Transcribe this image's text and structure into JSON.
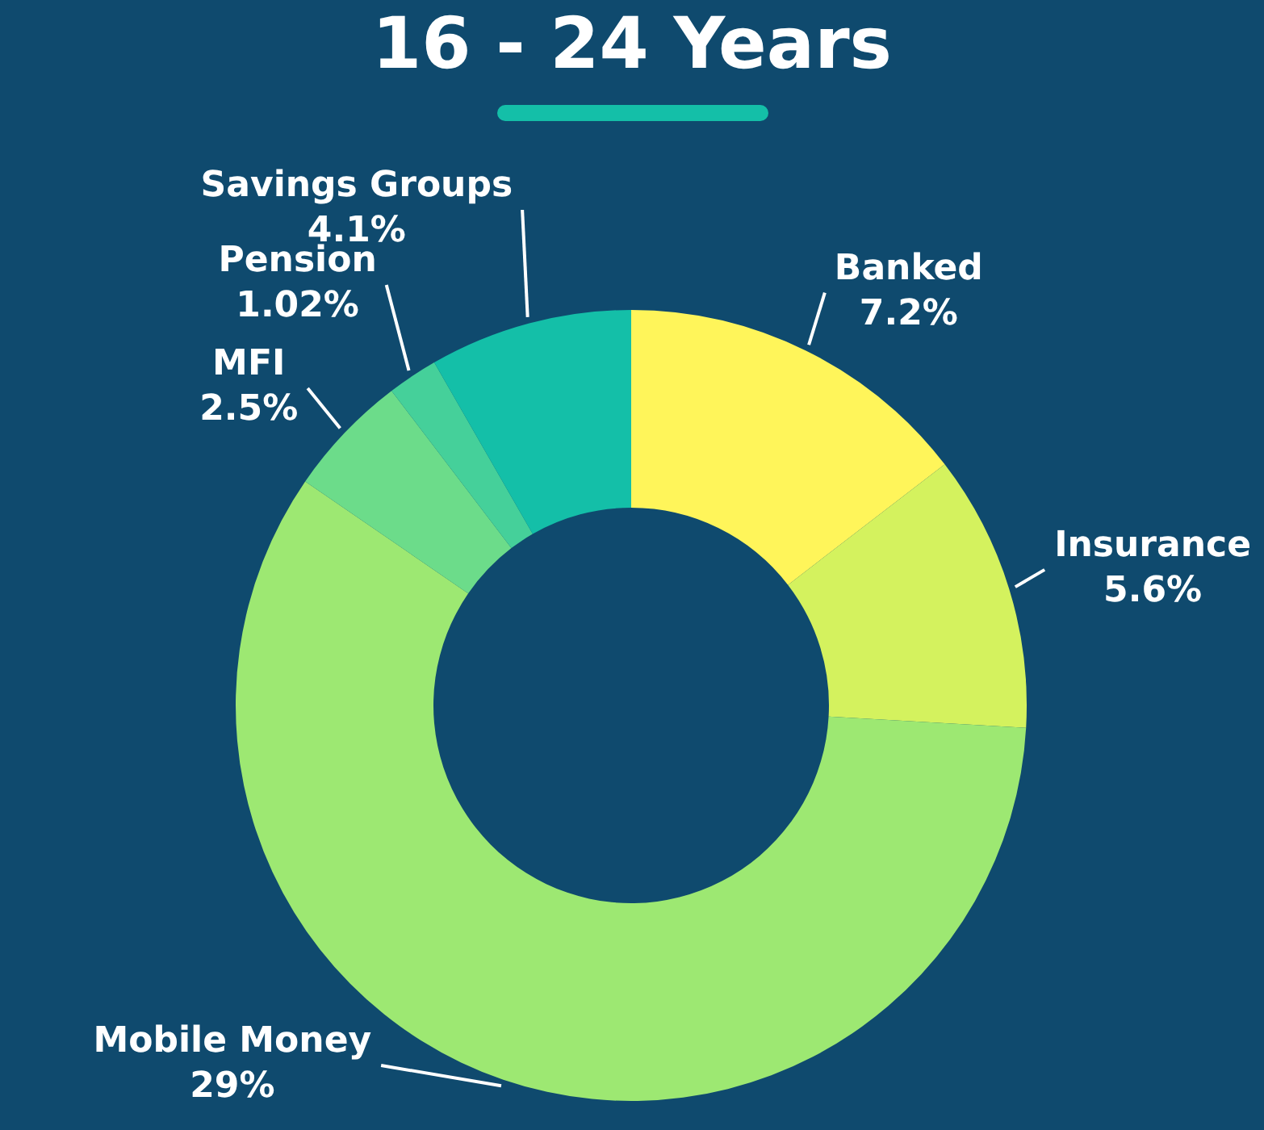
{
  "chart_data": {
    "type": "donut",
    "title": "16 - 24 Years",
    "categories": [
      "Banked",
      "Insurance",
      "Mobile Money",
      "MFI",
      "Pension",
      "Savings Groups"
    ],
    "values": [
      7.2,
      5.6,
      29,
      2.5,
      1.02,
      4.1
    ],
    "value_labels": [
      "7.2%",
      "5.6%",
      "29%",
      "2.5%",
      "1.02%",
      "4.1%"
    ],
    "colors": [
      "#fff55a",
      "#d4f25e",
      "#9de872",
      "#6cdc8a",
      "#45d09a",
      "#14bfa8"
    ],
    "legend": false
  }
}
